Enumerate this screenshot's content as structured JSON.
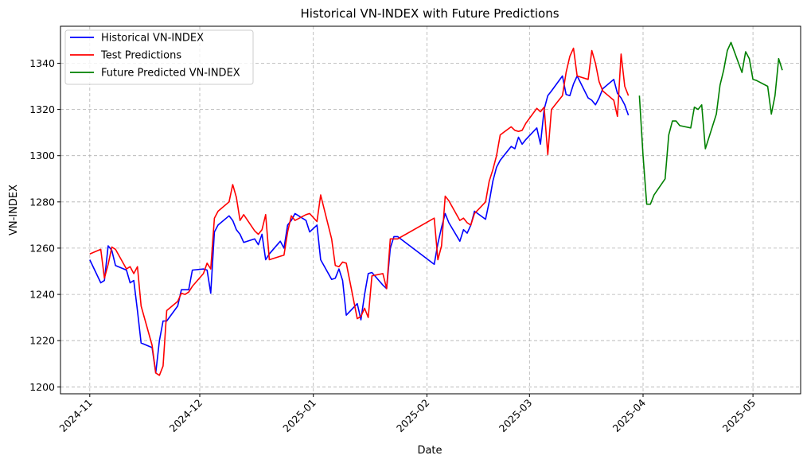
{
  "chart_data": {
    "type": "line",
    "title": "Historical VN-INDEX with Future Predictions",
    "xlabel": "Date",
    "ylabel": "VN-INDEX",
    "xlim": [
      "2024-10-24",
      "2025-05-14"
    ],
    "ylim": [
      1197,
      1356
    ],
    "x_tick_labels": [
      "2024-11",
      "2024-12",
      "2025-01",
      "2025-02",
      "2025-03",
      "2025-04",
      "2025-05"
    ],
    "x_ticks": [
      "2024-11-01",
      "2024-12-01",
      "2025-01-01",
      "2025-02-01",
      "2025-03-01",
      "2025-04-01",
      "2025-05-01"
    ],
    "y_ticks": [
      1200,
      1220,
      1240,
      1260,
      1280,
      1300,
      1320,
      1340
    ],
    "grid": true,
    "legend_position": "top-left",
    "series": [
      {
        "name": "Historical VN-INDEX",
        "color": "#0000ff",
        "x": [
          "2024-11-01",
          "2024-11-04",
          "2024-11-05",
          "2024-11-06",
          "2024-11-07",
          "2024-11-08",
          "2024-11-11",
          "2024-11-12",
          "2024-11-13",
          "2024-11-14",
          "2024-11-15",
          "2024-11-18",
          "2024-11-19",
          "2024-11-20",
          "2024-11-21",
          "2024-11-22",
          "2024-11-25",
          "2024-11-26",
          "2024-11-27",
          "2024-11-28",
          "2024-11-29",
          "2024-12-02",
          "2024-12-03",
          "2024-12-04",
          "2024-12-05",
          "2024-12-06",
          "2024-12-09",
          "2024-12-10",
          "2024-12-11",
          "2024-12-12",
          "2024-12-13",
          "2024-12-16",
          "2024-12-17",
          "2024-12-18",
          "2024-12-19",
          "2024-12-20",
          "2024-12-23",
          "2024-12-24",
          "2024-12-25",
          "2024-12-26",
          "2024-12-27",
          "2024-12-30",
          "2024-12-31",
          "2025-01-02",
          "2025-01-03",
          "2025-01-06",
          "2025-01-07",
          "2025-01-08",
          "2025-01-09",
          "2025-01-10",
          "2025-01-13",
          "2025-01-14",
          "2025-01-15",
          "2025-01-16",
          "2025-01-17",
          "2025-01-20",
          "2025-01-21",
          "2025-01-22",
          "2025-01-23",
          "2025-01-24",
          "2025-02-03",
          "2025-02-04",
          "2025-02-05",
          "2025-02-06",
          "2025-02-07",
          "2025-02-10",
          "2025-02-11",
          "2025-02-12",
          "2025-02-13",
          "2025-02-14",
          "2025-02-17",
          "2025-02-18",
          "2025-02-19",
          "2025-02-20",
          "2025-02-21",
          "2025-02-24",
          "2025-02-25",
          "2025-02-26",
          "2025-02-27",
          "2025-02-28",
          "2025-03-03",
          "2025-03-04",
          "2025-03-05",
          "2025-03-06",
          "2025-03-07",
          "2025-03-10",
          "2025-03-11",
          "2025-03-12",
          "2025-03-13",
          "2025-03-14",
          "2025-03-17",
          "2025-03-18",
          "2025-03-19",
          "2025-03-20",
          "2025-03-21",
          "2025-03-24",
          "2025-03-25",
          "2025-03-26",
          "2025-03-27",
          "2025-03-28"
        ],
        "values": [
          1255,
          1245,
          1246,
          1261,
          1259,
          1252.5,
          1250.5,
          1245,
          1246,
          1233,
          1219,
          1217,
          1206,
          1220,
          1228.5,
          1228.5,
          1235,
          1242,
          1242,
          1242,
          1250.5,
          1251,
          1250.5,
          1240.5,
          1267,
          1270,
          1274,
          1272,
          1268,
          1266,
          1262.5,
          1264,
          1261.5,
          1266,
          1255,
          1257.5,
          1263,
          1260,
          1270,
          1272,
          1275,
          1272,
          1267,
          1270,
          1255,
          1246.5,
          1247,
          1251,
          1246,
          1231,
          1236,
          1229,
          1240,
          1249,
          1249.5,
          1244,
          1242.5,
          1260,
          1265,
          1265,
          1253,
          1262,
          1269,
          1275,
          1271,
          1263,
          1268,
          1266.5,
          1270,
          1276,
          1272.5,
          1280,
          1289,
          1295,
          1298,
          1304,
          1303,
          1308,
          1305,
          1307,
          1312,
          1305,
          1320,
          1326,
          1328,
          1334.5,
          1326.5,
          1326,
          1331,
          1334.5,
          1325,
          1324,
          1322,
          1325,
          1329,
          1333,
          1327,
          1325,
          1322,
          1317.5
        ]
      },
      {
        "name": "Test Predictions",
        "color": "#ff0000",
        "x": [
          "2024-11-01",
          "2024-11-04",
          "2024-11-05",
          "2024-11-06",
          "2024-11-07",
          "2024-11-08",
          "2024-11-11",
          "2024-11-12",
          "2024-11-13",
          "2024-11-14",
          "2024-11-15",
          "2024-11-18",
          "2024-11-19",
          "2024-11-20",
          "2024-11-21",
          "2024-11-22",
          "2024-11-25",
          "2024-11-26",
          "2024-11-27",
          "2024-11-28",
          "2024-11-29",
          "2024-12-02",
          "2024-12-03",
          "2024-12-04",
          "2024-12-05",
          "2024-12-06",
          "2024-12-09",
          "2024-12-10",
          "2024-12-11",
          "2024-12-12",
          "2024-12-13",
          "2024-12-16",
          "2024-12-17",
          "2024-12-18",
          "2024-12-19",
          "2024-12-20",
          "2024-12-23",
          "2024-12-24",
          "2024-12-25",
          "2024-12-26",
          "2024-12-27",
          "2024-12-30",
          "2024-12-31",
          "2025-01-02",
          "2025-01-03",
          "2025-01-06",
          "2025-01-07",
          "2025-01-08",
          "2025-01-09",
          "2025-01-10",
          "2025-01-13",
          "2025-01-14",
          "2025-01-15",
          "2025-01-16",
          "2025-01-17",
          "2025-01-20",
          "2025-01-21",
          "2025-01-22",
          "2025-01-23",
          "2025-01-24",
          "2025-02-03",
          "2025-02-04",
          "2025-02-05",
          "2025-02-06",
          "2025-02-07",
          "2025-02-10",
          "2025-02-11",
          "2025-02-12",
          "2025-02-13",
          "2025-02-14",
          "2025-02-17",
          "2025-02-18",
          "2025-02-19",
          "2025-02-20",
          "2025-02-21",
          "2025-02-24",
          "2025-02-25",
          "2025-02-26",
          "2025-02-27",
          "2025-02-28",
          "2025-03-03",
          "2025-03-04",
          "2025-03-05",
          "2025-03-06",
          "2025-03-07",
          "2025-03-10",
          "2025-03-11",
          "2025-03-12",
          "2025-03-13",
          "2025-03-14",
          "2025-03-17",
          "2025-03-18",
          "2025-03-19",
          "2025-03-20",
          "2025-03-21",
          "2025-03-24",
          "2025-03-25",
          "2025-03-26",
          "2025-03-27",
          "2025-03-28"
        ],
        "values": [
          1257.5,
          1259.5,
          1247,
          1253,
          1260.5,
          1259.5,
          1251,
          1252,
          1249,
          1252,
          1235,
          1218,
          1206,
          1205,
          1209,
          1233,
          1237,
          1240.5,
          1240,
          1241,
          1243.5,
          1249,
          1253.5,
          1251,
          1273,
          1276,
          1280,
          1287.5,
          1282,
          1272,
          1274.5,
          1267.5,
          1266,
          1268,
          1274.5,
          1255,
          1256.5,
          1257,
          1267,
          1274,
          1272,
          1274.5,
          1275,
          1271.5,
          1283,
          1264,
          1252.5,
          1252,
          1254,
          1253.5,
          1229.5,
          1230.5,
          1234,
          1230,
          1248,
          1249,
          1242.5,
          1264,
          1264,
          1264,
          1273,
          1255,
          1261,
          1282.5,
          1280.5,
          1272,
          1273,
          1271,
          1270,
          1275,
          1280,
          1289,
          1294,
          1300,
          1309,
          1312.5,
          1311,
          1310.5,
          1311,
          1314,
          1320.5,
          1319,
          1321,
          1300.5,
          1320,
          1326,
          1336,
          1343,
          1346.5,
          1334.5,
          1333,
          1345.5,
          1340,
          1332,
          1328,
          1324,
          1317,
          1344,
          1330,
          1326
        ]
      },
      {
        "name": "Future Predicted VN-INDEX",
        "color": "#008000",
        "x": [
          "2025-03-31",
          "2025-04-01",
          "2025-04-02",
          "2025-04-03",
          "2025-04-04",
          "2025-04-07",
          "2025-04-08",
          "2025-04-09",
          "2025-04-10",
          "2025-04-11",
          "2025-04-14",
          "2025-04-15",
          "2025-04-16",
          "2025-04-17",
          "2025-04-18",
          "2025-04-21",
          "2025-04-22",
          "2025-04-23",
          "2025-04-24",
          "2025-04-25",
          "2025-04-28",
          "2025-04-29",
          "2025-04-30",
          "2025-05-01",
          "2025-05-02",
          "2025-05-05",
          "2025-05-06",
          "2025-05-07",
          "2025-05-08",
          "2025-05-09"
        ],
        "values": [
          1326,
          1300,
          1279,
          1279,
          1283,
          1290,
          1309,
          1315,
          1315,
          1313,
          1312,
          1321,
          1320,
          1322,
          1303,
          1318,
          1330.5,
          1337,
          1345.5,
          1349,
          1336,
          1345,
          1342,
          1333,
          1332.5,
          1330,
          1318,
          1326,
          1342,
          1337
        ]
      }
    ]
  }
}
